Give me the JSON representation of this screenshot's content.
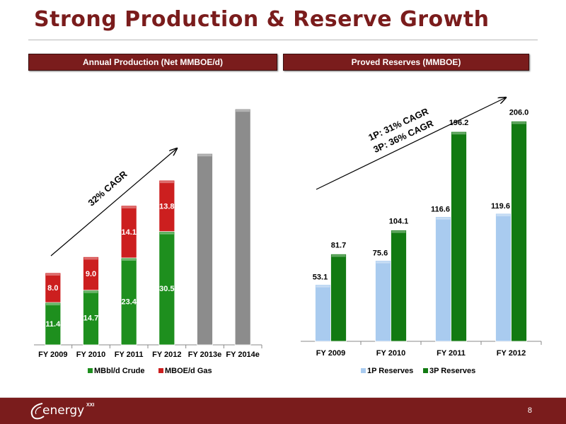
{
  "slide": {
    "title": "Strong Production & Reserve Growth",
    "page_number": "8"
  },
  "footer": {
    "logo_text": "energy",
    "logo_sup": "XXI"
  },
  "colors": {
    "brand": "#7a1c1c",
    "crude": "#1e8f1e",
    "gas": "#cc1f1f",
    "estimate": "#8c8c8c",
    "reserves_1p": "#a9cbef",
    "reserves_3p": "#127a12"
  },
  "chart_data": [
    {
      "type": "bar",
      "stacked": true,
      "title": "Annual Production (Net MMBOE/d)",
      "categories": [
        "FY 2009",
        "FY 2010",
        "FY 2011",
        "FY 2012",
        "FY 2013e",
        "FY 2014e"
      ],
      "series": [
        {
          "name": "MBbl/d Crude",
          "values": [
            11.4,
            14.7,
            23.4,
            30.5,
            null,
            null
          ]
        },
        {
          "name": "MBOE/d Gas",
          "values": [
            8.0,
            9.0,
            14.1,
            13.8,
            null,
            null
          ]
        }
      ],
      "estimates": {
        "FY 2013e": 51.5,
        "FY 2014e": 63.5
      },
      "annotation": "32% CAGR",
      "ylim": [
        0,
        70
      ],
      "legend_position": "bottom"
    },
    {
      "type": "bar",
      "title": "Proved Reserves (MMBOE)",
      "categories": [
        "FY 2009",
        "FY 2010",
        "FY 2011",
        "FY 2012"
      ],
      "series": [
        {
          "name": "1P Reserves",
          "values": [
            53.1,
            75.6,
            116.6,
            119.6
          ]
        },
        {
          "name": "3P Reserves",
          "values": [
            81.7,
            104.1,
            196.2,
            206.0
          ]
        }
      ],
      "annotations": [
        "1P: 31% CAGR",
        "3P: 36% CAGR"
      ],
      "ylim": [
        0,
        240
      ],
      "legend_position": "bottom"
    }
  ]
}
